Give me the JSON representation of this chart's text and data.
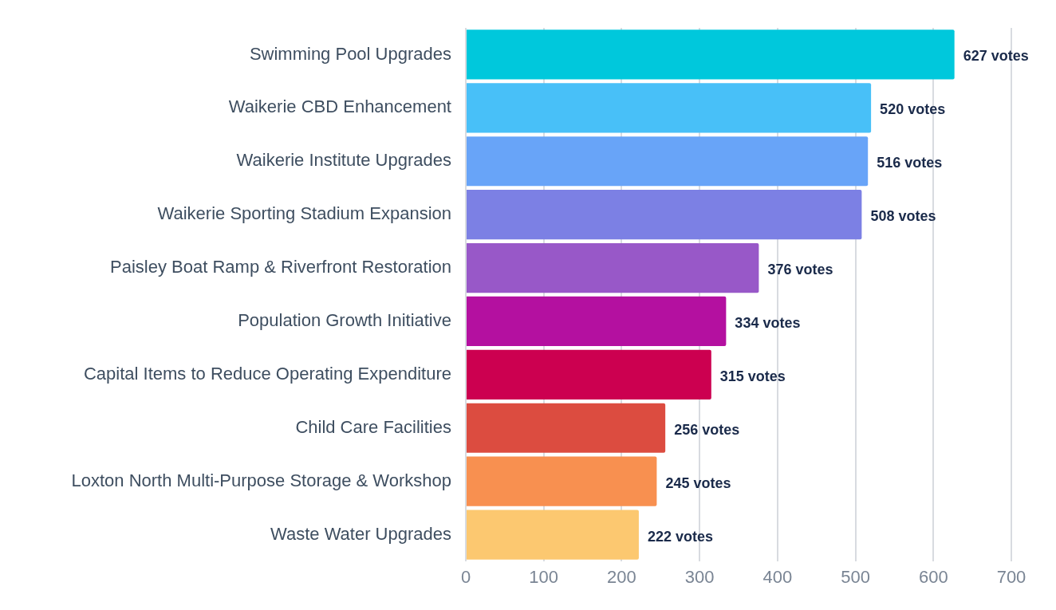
{
  "chart_data": {
    "type": "bar",
    "orientation": "horizontal",
    "categories": [
      "Swimming Pool Upgrades",
      "Waikerie CBD Enhancement",
      "Waikerie Institute Upgrades",
      "Waikerie Sporting Stadium Expansion",
      "Paisley Boat Ramp & Riverfront Restoration",
      "Population Growth Initiative",
      "Capital Items to Reduce Operating Expenditure",
      "Child Care Facilities",
      "Loxton North Multi-Purpose Storage & Workshop",
      "Waste Water Upgrades"
    ],
    "values": [
      627,
      520,
      516,
      508,
      376,
      334,
      315,
      256,
      245,
      222
    ],
    "value_labels": [
      "627 votes",
      "520 votes",
      "516 votes",
      "508 votes",
      "376 votes",
      "334 votes",
      "315 votes",
      "256 votes",
      "245 votes",
      "222 votes"
    ],
    "colors": [
      "#00c8dc",
      "#48c0f8",
      "#68a4f8",
      "#7c80e4",
      "#9858c8",
      "#b410a0",
      "#cc0050",
      "#dc4c40",
      "#f89050",
      "#fcc870"
    ],
    "xlim": [
      0,
      700
    ],
    "xticks": [
      0,
      100,
      200,
      300,
      400,
      500,
      600,
      700
    ],
    "grid": "x",
    "legend": false
  }
}
